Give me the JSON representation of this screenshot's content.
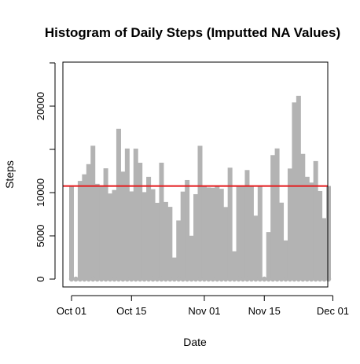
{
  "chart_data": {
    "type": "bar",
    "title": "Histogram of Daily Steps (Imputted NA Values)",
    "xlabel": "Date",
    "ylabel": "Steps",
    "x_ticks": [
      "Oct 01",
      "Oct 15",
      "Nov 01",
      "Nov 15",
      "Dec 01"
    ],
    "y_ticks": [
      "0",
      "5000",
      "10000",
      "20000"
    ],
    "ylim": [
      0,
      22500
    ],
    "grid": false,
    "legend": "none",
    "bar_color": "#b3b3b3",
    "mean_line_color": "#e41a1c",
    "mean_steps": 10766,
    "categories": [
      "2012-10-01",
      "2012-10-02",
      "2012-10-03",
      "2012-10-04",
      "2012-10-05",
      "2012-10-06",
      "2012-10-07",
      "2012-10-08",
      "2012-10-09",
      "2012-10-10",
      "2012-10-11",
      "2012-10-12",
      "2012-10-13",
      "2012-10-14",
      "2012-10-15",
      "2012-10-16",
      "2012-10-17",
      "2012-10-18",
      "2012-10-19",
      "2012-10-20",
      "2012-10-21",
      "2012-10-22",
      "2012-10-23",
      "2012-10-24",
      "2012-10-25",
      "2012-10-26",
      "2012-10-27",
      "2012-10-28",
      "2012-10-29",
      "2012-10-30",
      "2012-10-31",
      "2012-11-01",
      "2012-11-02",
      "2012-11-03",
      "2012-11-04",
      "2012-11-05",
      "2012-11-06",
      "2012-11-07",
      "2012-11-08",
      "2012-11-09",
      "2012-11-10",
      "2012-11-11",
      "2012-11-12",
      "2012-11-13",
      "2012-11-14",
      "2012-11-15",
      "2012-11-16",
      "2012-11-17",
      "2012-11-18",
      "2012-11-19",
      "2012-11-20",
      "2012-11-21",
      "2012-11-22",
      "2012-11-23",
      "2012-11-24",
      "2012-11-25",
      "2012-11-26",
      "2012-11-27",
      "2012-11-28",
      "2012-11-29",
      "2012-11-30"
    ],
    "values": [
      10766,
      126,
      11352,
      12116,
      13294,
      15420,
      11015,
      10766,
      12811,
      9900,
      10304,
      17382,
      12426,
      15098,
      10139,
      15084,
      13452,
      10056,
      11829,
      10395,
      8821,
      13460,
      8918,
      8355,
      2492,
      6778,
      10119,
      11458,
      5018,
      9819,
      15414,
      10766,
      10600,
      10571,
      10766,
      10439,
      8334,
      12883,
      3219,
      10766,
      10766,
      12608,
      10765,
      7336,
      10766,
      41,
      5441,
      14339,
      15110,
      8841,
      4472,
      12787,
      20427,
      21194,
      14478,
      11834,
      11162,
      13646,
      10183,
      7047,
      10766
    ]
  }
}
